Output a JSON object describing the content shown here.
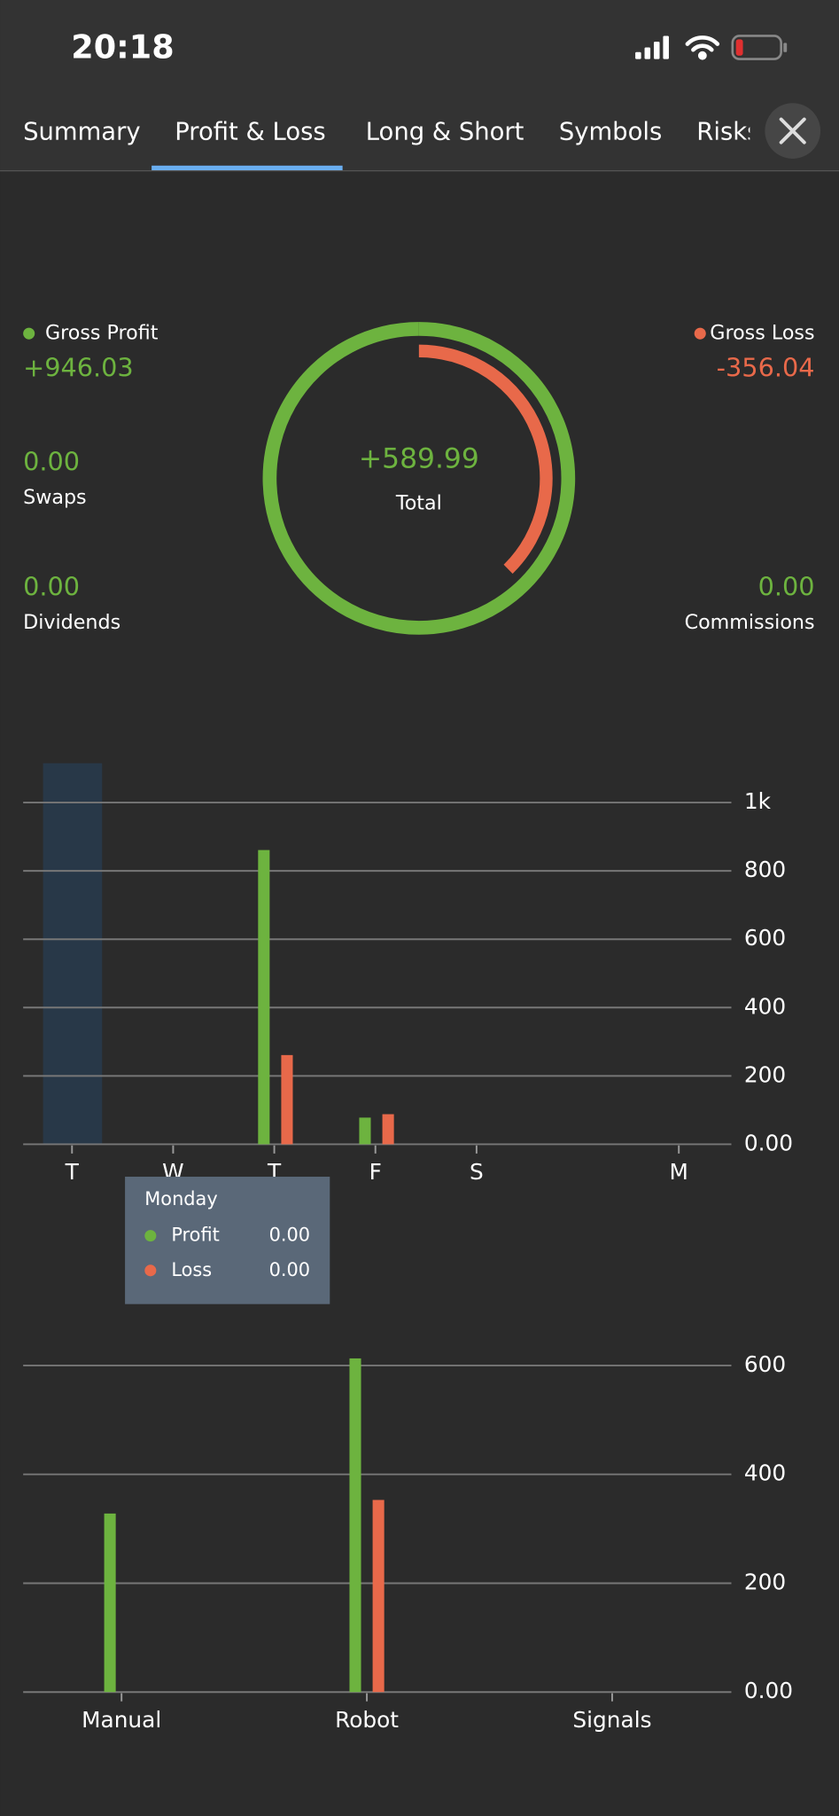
{
  "status_bar": {
    "time": "20:18"
  },
  "tabs": [
    "Summary",
    "Profit & Loss",
    "Long & Short",
    "Symbols",
    "Risks"
  ],
  "details": [
    {
      "value": "0.00",
      "label": "Swaps"
    },
    {
      "value": "0.00",
      "label": "Dividends"
    },
    {
      "value": "0.00",
      "label": "Commissions"
    }
  ],
  "chart_data": [
    {
      "type": "donut",
      "categories": [
        "Gross Profit",
        "Gross Loss"
      ],
      "values": [
        946.03,
        -356.04
      ],
      "value_labels": [
        "+946.03",
        "-356.04"
      ],
      "colors": [
        "#6db33f",
        "#e8694a"
      ],
      "total": 589.99,
      "total_label": "+589.99",
      "total_name": "Total"
    },
    {
      "type": "bar",
      "categories": [
        "T",
        "W",
        "T",
        "F",
        "S",
        null,
        "M"
      ],
      "series": [
        {
          "name": "Profit",
          "color": "#6db33f",
          "values": [
            0,
            0,
            861,
            78,
            0,
            0,
            0
          ]
        },
        {
          "name": "Loss",
          "color": "#e8694a",
          "values": [
            0,
            0,
            261,
            88,
            0,
            0,
            0
          ]
        }
      ],
      "ylim": [
        0,
        1115
      ],
      "yticks": [
        {
          "value": 0,
          "label": "0.00"
        },
        200,
        400,
        600,
        800,
        {
          "value": 1000,
          "label": "1k"
        }
      ],
      "grid": true,
      "highlight_index": 0,
      "tooltip": {
        "title": "Monday",
        "values": [
          "0.00",
          "0.00"
        ]
      }
    },
    {
      "type": "bar",
      "categories": [
        "Manual",
        "Robot",
        "Signals"
      ],
      "series": [
        {
          "name": "Profit",
          "color": "#6db33f",
          "values": [
            328,
            613,
            0
          ]
        },
        {
          "name": "Loss",
          "color": "#e8694a",
          "values": [
            0,
            353,
            0
          ]
        }
      ],
      "ylim": [
        0,
        650
      ],
      "yticks": [
        {
          "value": 0,
          "label": "0.00"
        },
        200,
        400,
        600
      ],
      "grid": true
    }
  ]
}
